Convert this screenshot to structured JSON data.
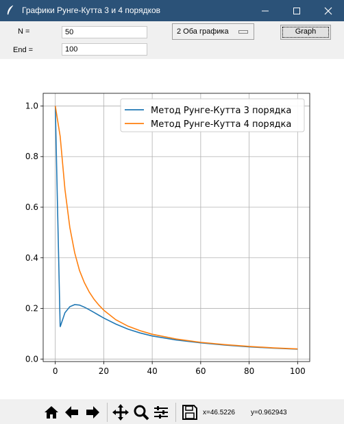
{
  "window": {
    "title": "Графики Рунге-Кутта 3 и 4 порядков"
  },
  "controls": {
    "n_label": "N =",
    "n_value": "50",
    "end_label": "End =",
    "end_value": "100",
    "mode_selected": "2 Оба графика",
    "graph_button": "Graph"
  },
  "chart_data": {
    "type": "line",
    "title": "",
    "xlabel": "",
    "ylabel": "",
    "xlim": [
      -5,
      105
    ],
    "ylim": [
      -0.01,
      1.05
    ],
    "xticks": [
      0,
      20,
      40,
      60,
      80,
      100
    ],
    "yticks": [
      0.0,
      0.2,
      0.4,
      0.6,
      0.8,
      1.0
    ],
    "grid": true,
    "legend_position": "top-right",
    "series": [
      {
        "name": "Метод Рунге-Кутта 3 порядка",
        "color": "#1f77b4",
        "x": [
          0,
          2,
          4,
          6,
          8,
          10,
          12,
          14,
          16,
          18,
          20,
          25,
          30,
          35,
          40,
          50,
          60,
          70,
          80,
          90,
          100
        ],
        "y": [
          1.0,
          0.127,
          0.183,
          0.207,
          0.215,
          0.213,
          0.205,
          0.195,
          0.184,
          0.173,
          0.162,
          0.138,
          0.118,
          0.103,
          0.091,
          0.075,
          0.064,
          0.055,
          0.048,
          0.043,
          0.039
        ]
      },
      {
        "name": "Метод Рунге-Кутта 4 порядка",
        "color": "#ff7f0e",
        "x": [
          0,
          2,
          4,
          6,
          8,
          10,
          12,
          14,
          16,
          18,
          20,
          25,
          30,
          35,
          40,
          50,
          60,
          70,
          80,
          90,
          100
        ],
        "y": [
          1.0,
          0.88,
          0.67,
          0.52,
          0.42,
          0.35,
          0.302,
          0.265,
          0.236,
          0.213,
          0.193,
          0.155,
          0.13,
          0.112,
          0.098,
          0.079,
          0.066,
          0.057,
          0.05,
          0.044,
          0.04
        ]
      }
    ]
  },
  "toolbar": {
    "icons": [
      "home-icon",
      "back-icon",
      "forward-icon",
      "pan-icon",
      "zoom-icon",
      "configure-subplots-icon",
      "save-icon"
    ],
    "coord_x": "x=46.5226",
    "coord_y": "y=0.962943"
  }
}
